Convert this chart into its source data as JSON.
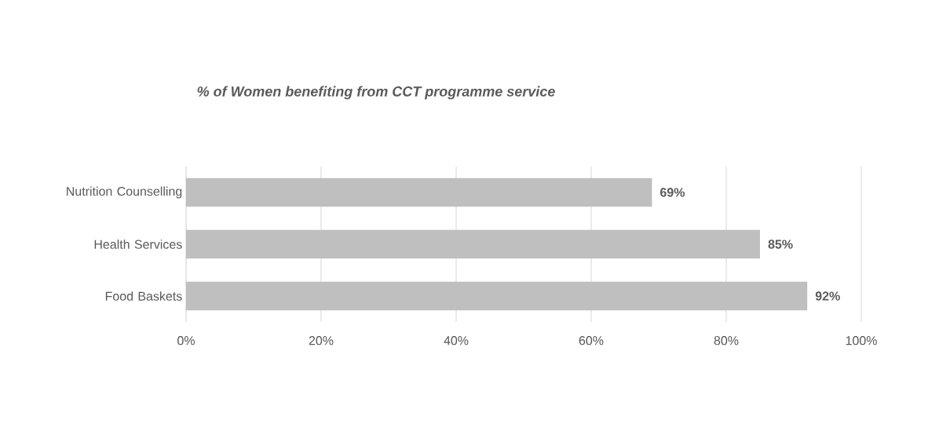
{
  "chart_data": {
    "type": "bar",
    "orientation": "horizontal",
    "title": "% of Women benefiting from CCT programme service",
    "categories": [
      "Nutrition Counselling",
      "Health Services",
      "Food Baskets"
    ],
    "values": [
      69,
      85,
      92
    ],
    "value_labels": [
      "69%",
      "85%",
      "92%"
    ],
    "color": "#bfbfbf",
    "xlim": [
      0,
      100
    ],
    "xticks": [
      {
        "value": 0,
        "label": "0%"
      },
      {
        "value": 20,
        "label": "20%"
      },
      {
        "value": 40,
        "label": "40%"
      },
      {
        "value": 60,
        "label": "60%"
      },
      {
        "value": 80,
        "label": "80%"
      },
      {
        "value": 100,
        "label": "100%"
      }
    ],
    "grid": "x"
  }
}
